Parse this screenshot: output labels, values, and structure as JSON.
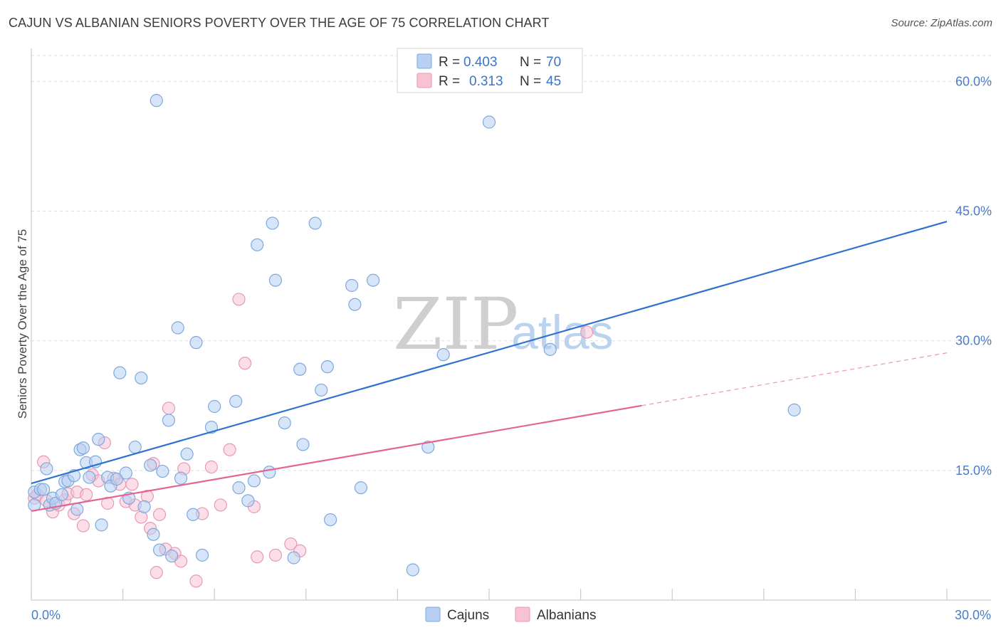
{
  "title": "CAJUN VS ALBANIAN SENIORS POVERTY OVER THE AGE OF 75 CORRELATION CHART",
  "source": "Source: ZipAtlas.com",
  "watermark": {
    "zip": "ZIP",
    "atlas": "atlas"
  },
  "chart_data": {
    "type": "scatter",
    "ylabel": "Seniors Poverty Over the Age of 75",
    "xlabel": "",
    "xlim": [
      0,
      30
    ],
    "ylim": [
      0,
      63
    ],
    "x_tick_labels": {
      "min": "0.0%",
      "max": "30.0%"
    },
    "y_ticks": [
      15,
      30,
      45,
      60
    ],
    "y_tick_labels": [
      "15.0%",
      "30.0%",
      "45.0%",
      "60.0%"
    ],
    "grid": true,
    "legend_placement": "top-center",
    "legend": [
      {
        "name": "Cajuns",
        "r_label": "R =",
        "r_value": "0.403",
        "n_label": "N =",
        "n_value": "70"
      },
      {
        "name": "Albanians",
        "r_label": "R =",
        "r_value": "0.313",
        "n_label": "N =",
        "n_value": "45"
      }
    ],
    "colors": {
      "cajuns_fill": "#b7d0f3",
      "cajuns_stroke": "#7fa8df",
      "cajuns_line": "#2f73cf",
      "albanians_fill": "#f7c3d3",
      "albanians_stroke": "#e79ab4",
      "albanians_line": "#e26592",
      "tick_label": "#4a7cc9",
      "grid": "#dddddd"
    },
    "series": [
      {
        "name": "Cajuns",
        "trend": {
          "x": [
            0,
            30
          ],
          "y": [
            13.5,
            43.8
          ],
          "style": "solid"
        },
        "points": [
          [
            0.1,
            12.5
          ],
          [
            0.1,
            11.0
          ],
          [
            0.3,
            12.8
          ],
          [
            0.5,
            15.2
          ],
          [
            0.6,
            11.0
          ],
          [
            0.7,
            11.8
          ],
          [
            0.8,
            11.2
          ],
          [
            1.0,
            12.2
          ],
          [
            1.1,
            13.7
          ],
          [
            1.2,
            13.8
          ],
          [
            1.4,
            14.4
          ],
          [
            1.5,
            10.5
          ],
          [
            1.6,
            17.4
          ],
          [
            1.7,
            17.6
          ],
          [
            1.8,
            15.9
          ],
          [
            1.9,
            14.2
          ],
          [
            2.1,
            16.0
          ],
          [
            2.2,
            18.6
          ],
          [
            2.3,
            8.7
          ],
          [
            2.5,
            14.2
          ],
          [
            2.6,
            13.2
          ],
          [
            2.8,
            14.0
          ],
          [
            2.9,
            26.3
          ],
          [
            3.1,
            14.7
          ],
          [
            3.2,
            11.8
          ],
          [
            3.4,
            17.7
          ],
          [
            3.6,
            25.7
          ],
          [
            3.7,
            10.8
          ],
          [
            3.9,
            15.6
          ],
          [
            4.0,
            7.6
          ],
          [
            4.1,
            57.8
          ],
          [
            4.3,
            14.9
          ],
          [
            4.5,
            20.8
          ],
          [
            4.6,
            5.1
          ],
          [
            4.8,
            31.5
          ],
          [
            4.9,
            14.1
          ],
          [
            5.1,
            16.9
          ],
          [
            5.3,
            9.9
          ],
          [
            5.4,
            29.8
          ],
          [
            5.6,
            5.2
          ],
          [
            5.9,
            20.0
          ],
          [
            6.0,
            22.4
          ],
          [
            6.7,
            23.0
          ],
          [
            6.8,
            13.0
          ],
          [
            7.1,
            11.5
          ],
          [
            7.3,
            13.8
          ],
          [
            7.4,
            41.1
          ],
          [
            7.8,
            14.8
          ],
          [
            7.9,
            43.6
          ],
          [
            8.0,
            37.0
          ],
          [
            8.3,
            20.5
          ],
          [
            8.6,
            4.9
          ],
          [
            8.8,
            26.7
          ],
          [
            8.9,
            18.0
          ],
          [
            9.3,
            43.6
          ],
          [
            9.5,
            24.3
          ],
          [
            9.7,
            27.0
          ],
          [
            9.8,
            9.3
          ],
          [
            10.5,
            36.4
          ],
          [
            10.6,
            34.2
          ],
          [
            10.8,
            13.0
          ],
          [
            11.2,
            37.0
          ],
          [
            12.5,
            3.5
          ],
          [
            13.0,
            17.7
          ],
          [
            13.5,
            28.4
          ],
          [
            15.0,
            55.3
          ],
          [
            17.0,
            29.0
          ],
          [
            25.0,
            22.0
          ],
          [
            0.4,
            12.8
          ],
          [
            4.2,
            5.8
          ]
        ]
      },
      {
        "name": "Albanians",
        "trend": {
          "x": [
            0,
            20
          ],
          "y": [
            10.3,
            22.5
          ],
          "style": "solid",
          "extended": {
            "x": [
              20,
              30
            ],
            "y": [
              22.5,
              28.6
            ],
            "style": "dashed"
          }
        },
        "points": [
          [
            0.1,
            11.8
          ],
          [
            0.2,
            12.2
          ],
          [
            0.4,
            16.0
          ],
          [
            0.5,
            11.5
          ],
          [
            0.7,
            10.2
          ],
          [
            0.9,
            11.0
          ],
          [
            1.1,
            11.6
          ],
          [
            1.2,
            12.3
          ],
          [
            1.4,
            10.0
          ],
          [
            1.5,
            12.5
          ],
          [
            1.7,
            8.6
          ],
          [
            1.8,
            12.2
          ],
          [
            2.0,
            14.5
          ],
          [
            2.2,
            13.8
          ],
          [
            2.4,
            18.2
          ],
          [
            2.5,
            11.2
          ],
          [
            2.7,
            14.1
          ],
          [
            2.9,
            13.4
          ],
          [
            3.1,
            11.4
          ],
          [
            3.3,
            13.4
          ],
          [
            3.4,
            11.0
          ],
          [
            3.6,
            9.6
          ],
          [
            3.8,
            12.0
          ],
          [
            3.9,
            8.3
          ],
          [
            4.0,
            15.8
          ],
          [
            4.1,
            3.2
          ],
          [
            4.2,
            9.9
          ],
          [
            4.4,
            5.9
          ],
          [
            4.5,
            22.2
          ],
          [
            4.7,
            5.4
          ],
          [
            4.9,
            4.5
          ],
          [
            5.0,
            15.2
          ],
          [
            5.4,
            2.2
          ],
          [
            5.6,
            10.0
          ],
          [
            5.9,
            15.4
          ],
          [
            6.2,
            11.0
          ],
          [
            6.5,
            17.4
          ],
          [
            6.8,
            34.8
          ],
          [
            7.0,
            27.4
          ],
          [
            7.3,
            10.8
          ],
          [
            7.4,
            5.0
          ],
          [
            8.0,
            5.2
          ],
          [
            8.5,
            6.5
          ],
          [
            8.8,
            5.7
          ],
          [
            18.2,
            31.0
          ]
        ]
      }
    ]
  }
}
